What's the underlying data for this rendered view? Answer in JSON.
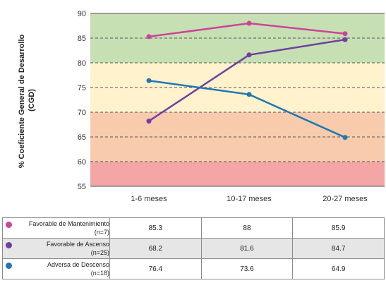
{
  "chart_data": {
    "type": "line",
    "title": "",
    "xlabel": "",
    "ylabel": "% Coeficiente General de Desarrollo (CGD)",
    "ylabel_lines": [
      "% Coeficiente General de Desarrollo",
      "(CGD)"
    ],
    "ylim": [
      55,
      90
    ],
    "yticks": [
      55,
      60,
      65,
      70,
      75,
      80,
      85,
      90
    ],
    "grid": "dashed horizontal",
    "legend": "table-below",
    "categories": [
      "1-6 meses",
      "10-17 meses",
      "20-27 meses"
    ],
    "bands": [
      {
        "from": 80,
        "to": 90,
        "color": "#c6e0b4"
      },
      {
        "from": 70,
        "to": 80,
        "color": "#fff2cc"
      },
      {
        "from": 60,
        "to": 70,
        "color": "#f8cbad"
      },
      {
        "from": 55,
        "to": 60,
        "color": "#f4a6a6"
      }
    ],
    "series": [
      {
        "name": "Favorable de Mantenimiento",
        "n_label": "(n=7)",
        "color": "#cc4499",
        "values": [
          85.3,
          88,
          85.9
        ],
        "labels": [
          "85.3",
          "88",
          "85.9"
        ]
      },
      {
        "name": "Favorable de Ascenso",
        "n_label": "(n=25)",
        "color": "#7040a0",
        "values": [
          68.2,
          81.6,
          84.7
        ],
        "labels": [
          "68.2",
          "81.6",
          "84.7"
        ]
      },
      {
        "name": "Adversa de Descenso",
        "n_label": "(n=18)",
        "color": "#1f77b4",
        "values": [
          76.4,
          73.6,
          64.9
        ],
        "labels": [
          "76.4",
          "73.6",
          "64.9"
        ]
      }
    ]
  }
}
